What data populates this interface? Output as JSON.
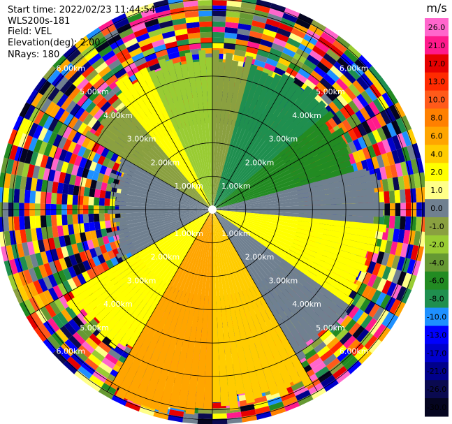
{
  "header": {
    "start_time": "Start time: 2022/02/23 11:44:54",
    "instrument": "WLS200s-181",
    "field": "Field: VEL",
    "elevation": "Elevation(deg): 2.00",
    "nrays": "NRays: 180"
  },
  "chart_data": {
    "type": "heatmap",
    "subtype": "polar-ppi",
    "grid": true,
    "range_rings_km": [
      1,
      2,
      3,
      4,
      5,
      6
    ],
    "ring_labels": [
      "1.00km",
      "2.00km",
      "3.00km",
      "4.00km",
      "5.00km",
      "6.00km"
    ],
    "colorbar": {
      "unit": "m/s",
      "position": "right",
      "ticks": [
        "26.0",
        "21.0",
        "17.0",
        "13.0",
        "10.0",
        "8.0",
        "6.0",
        "4.0",
        "2.0",
        "1.0",
        "0.0",
        "-1.0",
        "-2.0",
        "-4.0",
        "-6.0",
        "-8.0",
        "-10.0",
        "-13.0",
        "-17.0",
        "-21.0",
        "-26.0",
        "-30.0"
      ],
      "colors": [
        "#ff66cc",
        "#ff1a8c",
        "#e60000",
        "#ff2a00",
        "#ff5a1a",
        "#ff8000",
        "#ffa500",
        "#ffcc00",
        "#ffff00",
        "#ffff88",
        "#708090",
        "#8aa040",
        "#99cc33",
        "#669933",
        "#228b22",
        "#1f8f4f",
        "#1e90ff",
        "#0000ff",
        "#0000cc",
        "#00008b",
        "#0a0a50",
        "#050520"
      ]
    },
    "velocity_sectors": [
      {
        "from_deg": 0,
        "to_deg": 15,
        "range_km": [
          0,
          4.6
        ],
        "velocity": -1.0
      },
      {
        "from_deg": 15,
        "to_deg": 50,
        "range_km": [
          0,
          4.6
        ],
        "velocity": -8.0
      },
      {
        "from_deg": 50,
        "to_deg": 75,
        "range_km": [
          0,
          4.4
        ],
        "velocity": -6.0
      },
      {
        "from_deg": 75,
        "to_deg": 95,
        "range_km": [
          0,
          5.0
        ],
        "velocity": 0.0
      },
      {
        "from_deg": 95,
        "to_deg": 125,
        "range_km": [
          0,
          5.0
        ],
        "velocity": 2.0
      },
      {
        "from_deg": 125,
        "to_deg": 150,
        "range_km": [
          0,
          5.0
        ],
        "velocity": 0.0
      },
      {
        "from_deg": 150,
        "to_deg": 180,
        "range_km": [
          0,
          5.8
        ],
        "velocity": 4.0
      },
      {
        "from_deg": 180,
        "to_deg": 210,
        "range_km": [
          0,
          6.2
        ],
        "velocity": 6.0
      },
      {
        "from_deg": 210,
        "to_deg": 240,
        "range_km": [
          0,
          5.0
        ],
        "velocity": 2.0
      },
      {
        "from_deg": 240,
        "to_deg": 270,
        "range_km": [
          0,
          3.0
        ],
        "velocity": 0.0
      },
      {
        "from_deg": 270,
        "to_deg": 300,
        "range_km": [
          0,
          3.0
        ],
        "velocity": 0.0
      },
      {
        "from_deg": 300,
        "to_deg": 320,
        "range_km": [
          0,
          4.2
        ],
        "velocity": -1.0
      },
      {
        "from_deg": 320,
        "to_deg": 335,
        "range_km": [
          0,
          4.6
        ],
        "velocity": 2.0
      },
      {
        "from_deg": 335,
        "to_deg": 360,
        "range_km": [
          0,
          4.6
        ],
        "velocity": -2.0
      }
    ]
  }
}
